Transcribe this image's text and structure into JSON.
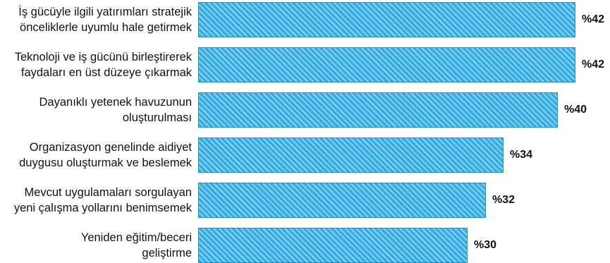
{
  "colors": {
    "bar_fill": "#35aee8",
    "bar_stripe": "#ffffff",
    "text": "#111111"
  },
  "chart_data": {
    "type": "bar",
    "orientation": "horizontal",
    "categories": [
      "İş gücüyle ilgili yatırımları stratejik önceliklerle uyumlu hale getirmek",
      "Teknoloji ve iş gücünü birleştirerek faydaları en üst düzeye çıkarmak",
      "Dayanıklı yetenek havuzunun oluşturulması",
      "Organizasyon genelinde aidiyet duygusu oluşturmak ve beslemek",
      "Mevcut uygulamaları sorgulayan yeni çalışma yollarını benimsemek",
      "Yeniden eğitim/beceri geliştirme"
    ],
    "category_lines": [
      [
        "İş gücüyle ilgili yatırımları stratejik",
        "önceliklerle uyumlu hale getirmek"
      ],
      [
        "Teknoloji ve iş gücünü birleştirerek",
        "faydaları en üst düzeye çıkarmak"
      ],
      [
        "Dayanıklı yetenek havuzunun",
        "oluşturulması"
      ],
      [
        "Organizasyon genelinde aidiyet",
        "duygusu oluşturmak ve beslemek"
      ],
      [
        "Mevcut uygulamaları sorgulayan",
        "yeni çalışma yollarını benimsemek"
      ],
      [
        "Yeniden eğitim/beceri",
        "geliştirme"
      ]
    ],
    "values": [
      42,
      42,
      40,
      34,
      32,
      30
    ],
    "value_labels": [
      "%42",
      "%42",
      "%40",
      "%34",
      "%32",
      "%30"
    ],
    "xlim": [
      0,
      42
    ],
    "grid": false,
    "legend": "none"
  }
}
